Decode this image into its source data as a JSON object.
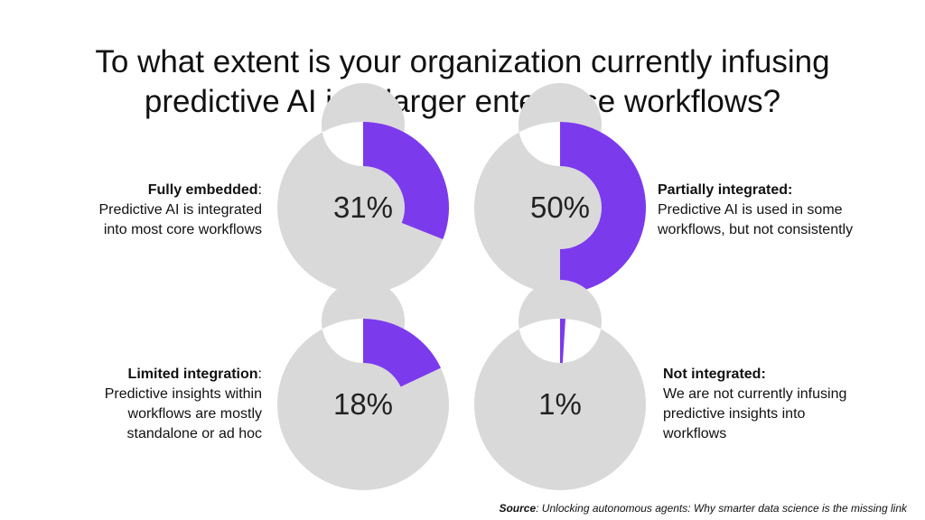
{
  "title": {
    "line1": "To what extent is your organization currently infusing",
    "line2": "predictive AI into larger enterprise workflows?"
  },
  "colors": {
    "accent": "#7c3aed",
    "track": "#d9d9d9"
  },
  "chart_data": {
    "type": "pie",
    "charts": [
      {
        "id": "fully",
        "value": 31,
        "value_label": "31%",
        "heading": "Fully embedded",
        "heading_suffix": ":",
        "desc": [
          "Predictive AI is integrated",
          "into most core workflows"
        ],
        "side": "left"
      },
      {
        "id": "partial",
        "value": 50,
        "value_label": "50%",
        "heading": "Partially integrated:",
        "heading_suffix": "",
        "desc": [
          "Predictive AI is used in some",
          "workflows, but not consistently"
        ],
        "side": "right"
      },
      {
        "id": "limited",
        "value": 18,
        "value_label": "18%",
        "heading": "Limited integration",
        "heading_suffix": ":",
        "desc": [
          "Predictive insights within",
          "workflows are mostly",
          "standalone or ad hoc"
        ],
        "side": "left"
      },
      {
        "id": "not",
        "value": 1,
        "value_label": "1%",
        "heading": "Not integrated:",
        "heading_suffix": "",
        "desc": [
          "We are not currently infusing",
          "predictive insights into",
          "workflows"
        ],
        "side": "right"
      }
    ]
  },
  "source": {
    "label": "Source",
    "text": ": Unlocking autonomous agents: Why smarter data science is the missing link"
  }
}
